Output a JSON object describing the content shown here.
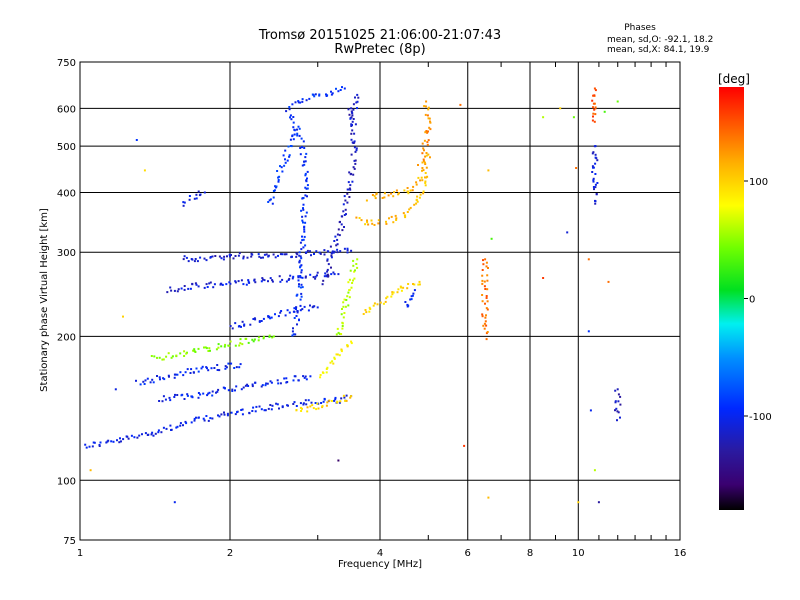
{
  "chart_data": {
    "type": "scatter",
    "title": "Tromsø 20151025 21:06:00-21:07:43",
    "subtitle": "RwPretec (8p)",
    "xlabel": "Frequency [MHz]",
    "ylabel": "Stationary phase Virtual Height [km]",
    "x_scale": "log",
    "y_scale": "log",
    "xlim": [
      1,
      16
    ],
    "ylim": [
      75,
      750
    ],
    "x_ticks": [
      1,
      2,
      4,
      6,
      8,
      10,
      16
    ],
    "x_tick_labels": [
      "1",
      "2",
      "4",
      "6",
      "8",
      "10",
      "16"
    ],
    "y_ticks": [
      75,
      100,
      200,
      300,
      400,
      500,
      600,
      750
    ],
    "y_tick_labels": [
      "75",
      "100",
      "200",
      "300",
      "400",
      "500",
      "600",
      "750"
    ],
    "grid": true,
    "phase_box": {
      "heading": "Phases",
      "line_o": "mean, sd,O: -92.1, 18.2",
      "line_x": "mean, sd,X:  84.1, 19.9"
    },
    "colorbar": {
      "label": "[deg]",
      "range": [
        -180,
        180
      ],
      "ticks": [
        100,
        0,
        -100
      ],
      "tick_labels": [
        "100",
        "0",
        "-100"
      ],
      "colormap": "rainbow"
    },
    "traces": [
      {
        "x": [
          1.02,
          1.2,
          1.45,
          1.7,
          1.95,
          2.2,
          2.5,
          2.8,
          3.1,
          3.4,
          3.5
        ],
        "y": [
          118,
          121,
          127,
          133,
          137,
          140,
          143,
          145,
          146,
          147,
          150
        ],
        "phase": -105
      },
      {
        "x": [
          1.45,
          1.7,
          1.95,
          2.25,
          2.6,
          2.9
        ],
        "y": [
          148,
          150,
          155,
          158,
          162,
          165
        ],
        "phase": -100
      },
      {
        "x": [
          1.4,
          1.65,
          1.9,
          2.15,
          2.45
        ],
        "y": [
          180,
          185,
          190,
          195,
          200
        ],
        "phase": 45
      },
      {
        "x": [
          1.5,
          1.75,
          2.0,
          2.3,
          2.7,
          3.0,
          3.3
        ],
        "y": [
          250,
          255,
          258,
          262,
          265,
          268,
          270
        ],
        "phase": -108
      },
      {
        "x": [
          1.6,
          1.85,
          2.1,
          2.5,
          2.9,
          3.3,
          3.5
        ],
        "y": [
          290,
          292,
          295,
          296,
          298,
          300,
          302
        ],
        "phase": -112
      },
      {
        "x": [
          1.6,
          1.68,
          1.78
        ],
        "y": [
          380,
          390,
          400
        ],
        "phase": -105
      },
      {
        "x": [
          2.7,
          2.75,
          2.78,
          2.8,
          2.82,
          2.85,
          2.82,
          2.75,
          2.65
        ],
        "y": [
          200,
          240,
          280,
          330,
          380,
          430,
          480,
          530,
          580
        ],
        "phase": -95
      },
      {
        "x": [
          3.1,
          3.2,
          3.3,
          3.4,
          3.45,
          3.5,
          3.55,
          3.55,
          3.5
        ],
        "y": [
          260,
          300,
          330,
          360,
          400,
          440,
          480,
          540,
          600
        ],
        "phase": -118
      },
      {
        "x": [
          2.4,
          2.5,
          2.6,
          2.7
        ],
        "y": [
          380,
          430,
          480,
          540
        ],
        "phase": -90
      },
      {
        "x": [
          2.7,
          3.0,
          3.2,
          3.4,
          3.5
        ],
        "y": [
          140,
          143,
          145,
          148,
          150
        ],
        "phase": 100
      },
      {
        "x": [
          3.0,
          3.2,
          3.35,
          3.5
        ],
        "y": [
          165,
          175,
          185,
          195
        ],
        "phase": 85
      },
      {
        "x": [
          3.3,
          3.4,
          3.5,
          3.6
        ],
        "y": [
          200,
          230,
          260,
          290
        ],
        "phase": 60
      },
      {
        "x": [
          3.6,
          3.9,
          4.2,
          4.5,
          4.8,
          4.95
        ],
        "y": [
          350,
          345,
          350,
          360,
          390,
          430
        ],
        "phase": 110
      },
      {
        "x": [
          3.8,
          4.1,
          4.4,
          4.7,
          4.9,
          5.0
        ],
        "y": [
          390,
          395,
          400,
          410,
          440,
          480
        ],
        "phase": 112
      },
      {
        "x": [
          4.8,
          4.9,
          4.95,
          5.0,
          4.95
        ],
        "y": [
          450,
          480,
          520,
          560,
          620
        ],
        "phase": 125
      },
      {
        "x": [
          3.7,
          3.9,
          4.1,
          4.3,
          4.5,
          4.8
        ],
        "y": [
          225,
          230,
          240,
          250,
          255,
          260
        ],
        "phase": 100
      },
      {
        "x": [
          1.3,
          1.5,
          1.7,
          1.9,
          2.1
        ],
        "y": [
          160,
          165,
          170,
          172,
          175
        ],
        "phase": -100
      },
      {
        "x": [
          2.0,
          2.2,
          2.4,
          2.6,
          2.8,
          3.0
        ],
        "y": [
          210,
          215,
          220,
          225,
          228,
          230
        ],
        "phase": -102
      },
      {
        "x": [
          2.6,
          2.8,
          3.0,
          3.2,
          3.4
        ],
        "y": [
          600,
          620,
          640,
          650,
          660
        ],
        "phase": -95
      },
      {
        "x": [
          3.5,
          3.55,
          3.6
        ],
        "y": [
          560,
          600,
          640
        ],
        "phase": -110
      },
      {
        "x": [
          4.5,
          4.6,
          4.7
        ],
        "y": [
          230,
          240,
          250
        ],
        "phase": -100
      },
      {
        "x": [
          6.5,
          6.5,
          6.5,
          6.5
        ],
        "y": [
          200,
          240,
          270,
          290
        ],
        "phase": 140
      },
      {
        "x": [
          10.8,
          10.8,
          10.8,
          10.8
        ],
        "y": [
          380,
          420,
          460,
          500
        ],
        "phase": -110
      },
      {
        "x": [
          10.8,
          10.8,
          10.8
        ],
        "y": [
          560,
          600,
          660
        ],
        "phase": 150
      },
      {
        "x": [
          12.0,
          12.0,
          12.0
        ],
        "y": [
          135,
          145,
          155
        ],
        "phase": -120
      }
    ],
    "points": [
      {
        "x": 1.3,
        "y": 515,
        "phase": -90
      },
      {
        "x": 1.55,
        "y": 90,
        "phase": -100
      },
      {
        "x": 1.05,
        "y": 105,
        "phase": 110
      },
      {
        "x": 1.18,
        "y": 155,
        "phase": -105
      },
      {
        "x": 1.22,
        "y": 220,
        "phase": 100
      },
      {
        "x": 1.35,
        "y": 445,
        "phase": 95
      },
      {
        "x": 5.9,
        "y": 118,
        "phase": 160
      },
      {
        "x": 6.6,
        "y": 92,
        "phase": 110
      },
      {
        "x": 6.6,
        "y": 445,
        "phase": 110
      },
      {
        "x": 6.7,
        "y": 320,
        "phase": 30
      },
      {
        "x": 8.5,
        "y": 265,
        "phase": 160
      },
      {
        "x": 8.5,
        "y": 575,
        "phase": 60
      },
      {
        "x": 9.2,
        "y": 600,
        "phase": 100
      },
      {
        "x": 9.5,
        "y": 330,
        "phase": -110
      },
      {
        "x": 9.8,
        "y": 575,
        "phase": 40
      },
      {
        "x": 9.9,
        "y": 450,
        "phase": 140
      },
      {
        "x": 10.0,
        "y": 90,
        "phase": 100
      },
      {
        "x": 10.5,
        "y": 205,
        "phase": -90
      },
      {
        "x": 10.5,
        "y": 290,
        "phase": 140
      },
      {
        "x": 10.6,
        "y": 140,
        "phase": -100
      },
      {
        "x": 10.8,
        "y": 105,
        "phase": 60
      },
      {
        "x": 11.0,
        "y": 90,
        "phase": -130
      },
      {
        "x": 11.3,
        "y": 590,
        "phase": 30
      },
      {
        "x": 11.5,
        "y": 260,
        "phase": 140
      },
      {
        "x": 12.0,
        "y": 620,
        "phase": 40
      },
      {
        "x": 5.8,
        "y": 610,
        "phase": 140
      },
      {
        "x": 3.3,
        "y": 110,
        "phase": -160
      }
    ]
  }
}
